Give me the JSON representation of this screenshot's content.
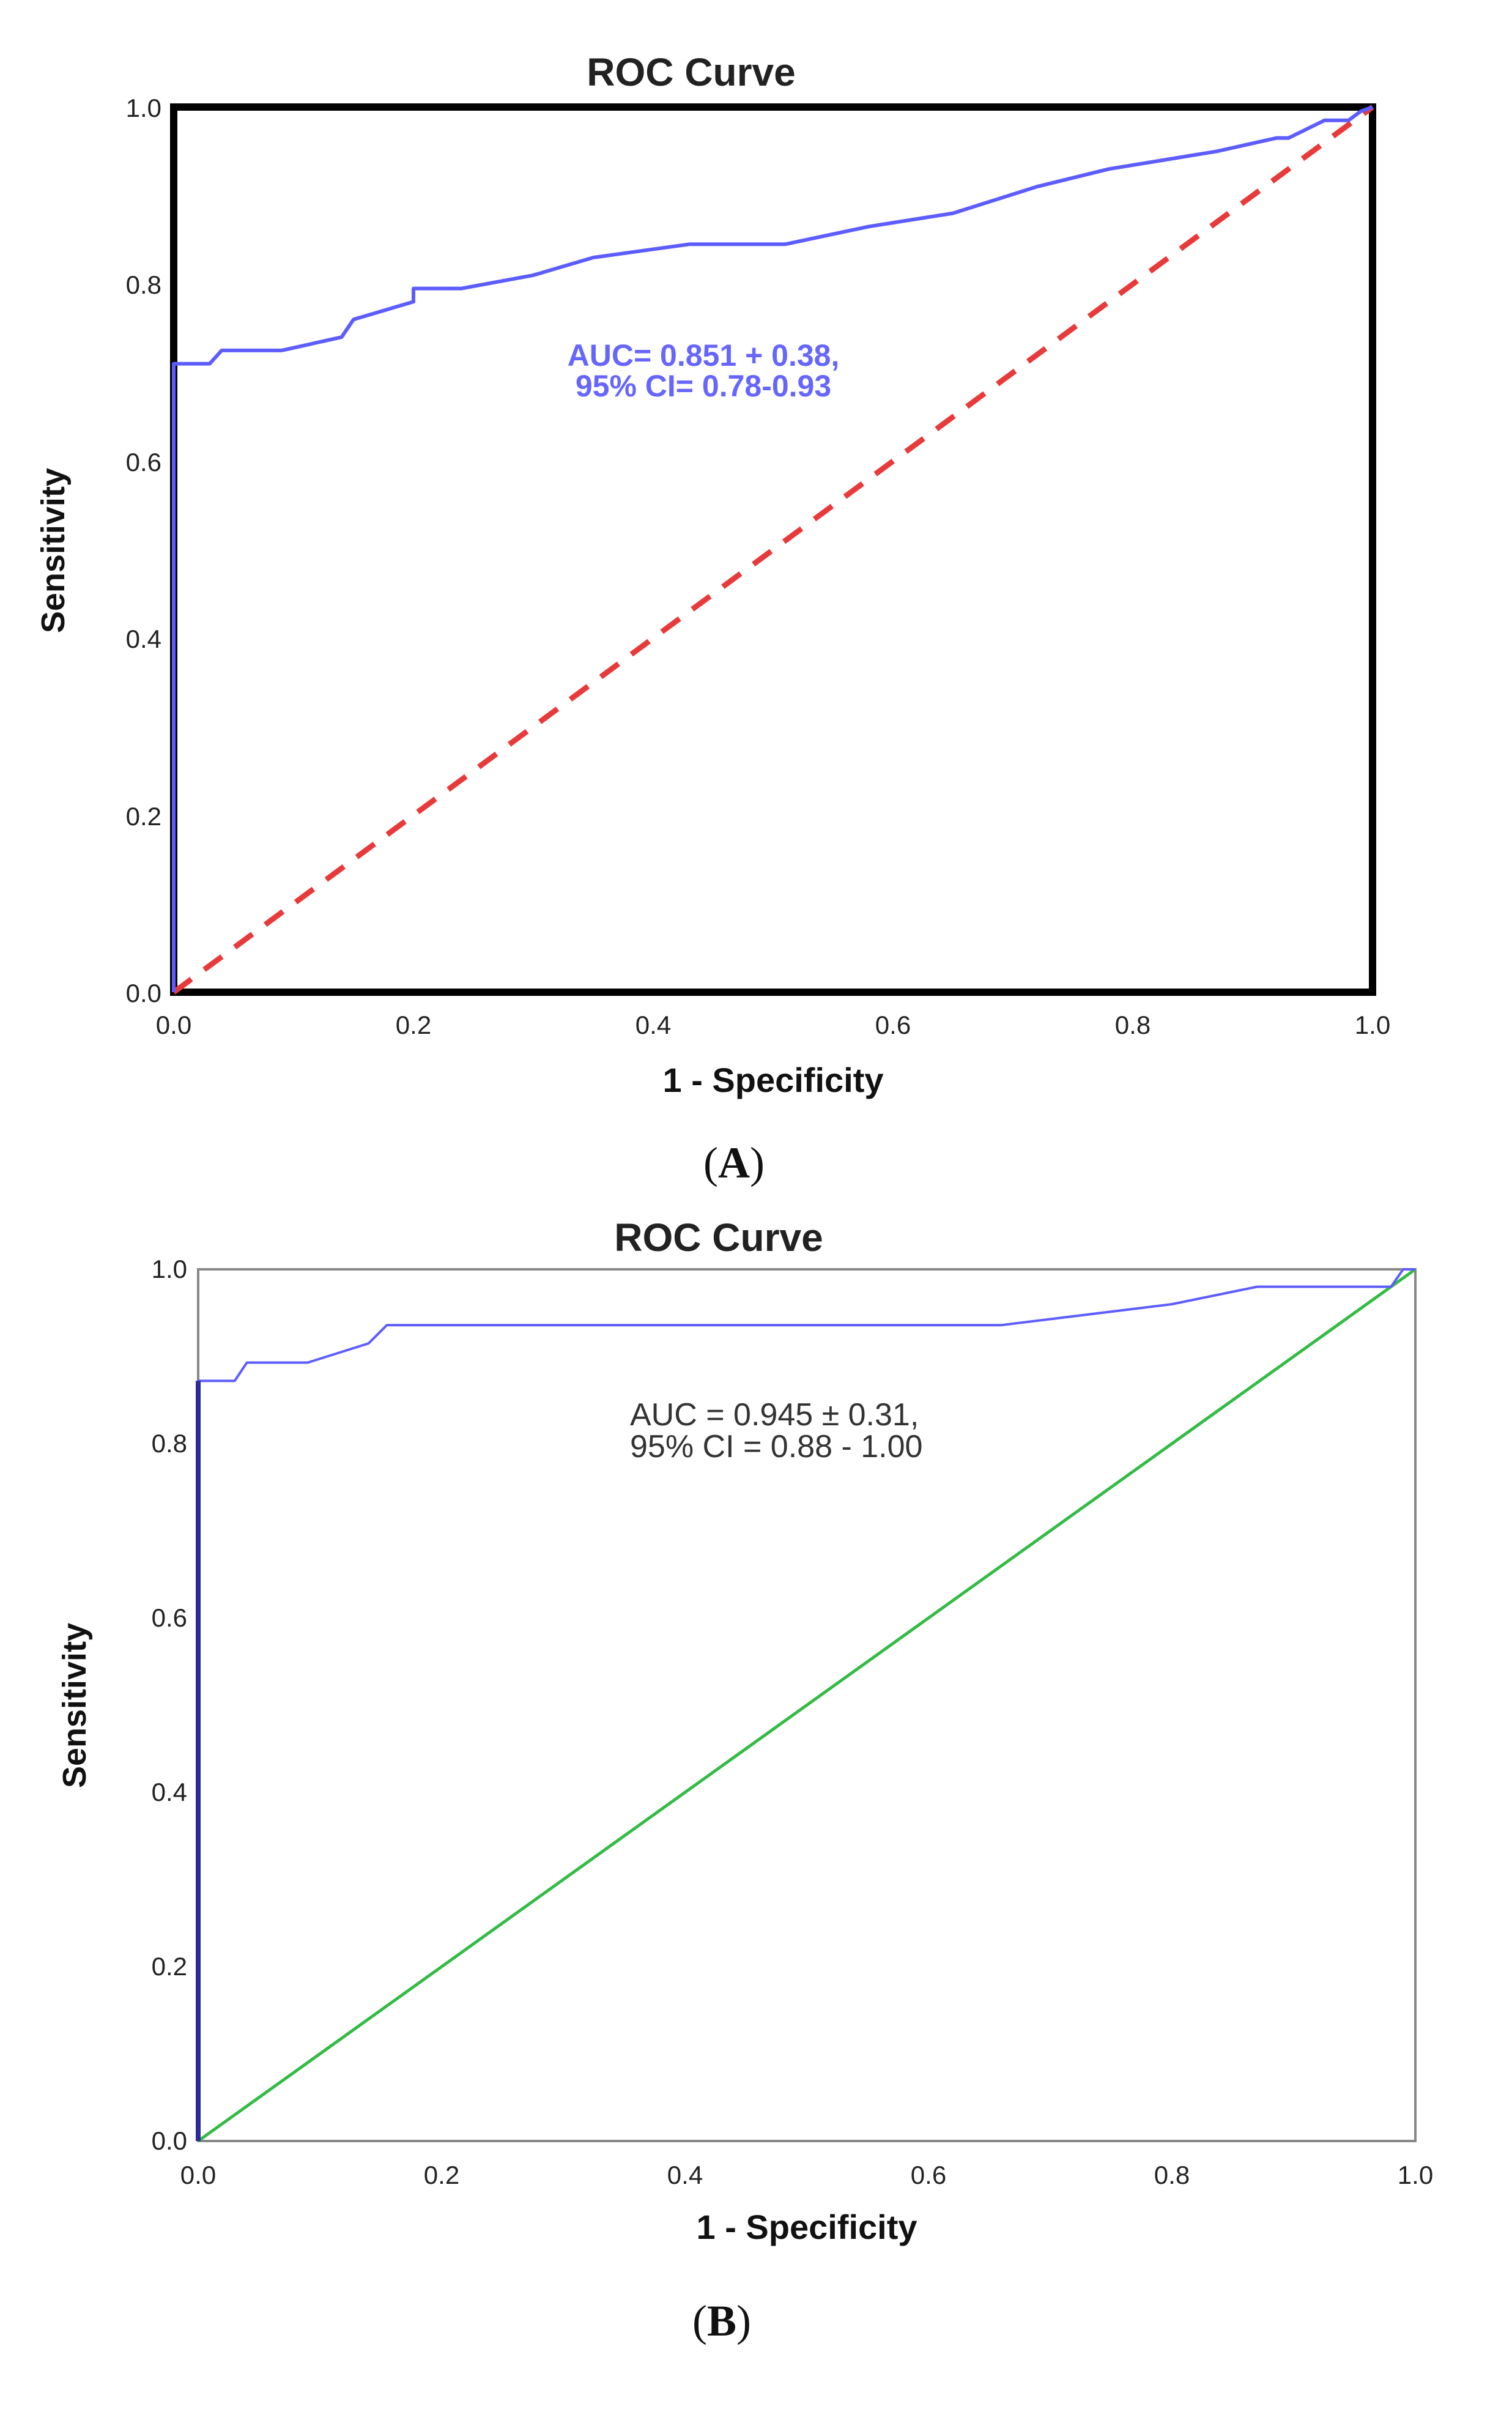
{
  "chart_data": [
    {
      "type": "line",
      "panel": "A",
      "title": "ROC Curve",
      "xlabel": "1 - Specificity",
      "ylabel": "Sensitivity",
      "xlim": [
        0,
        1
      ],
      "ylim": [
        0,
        1
      ],
      "xticks": [
        "0.0",
        "0.2",
        "0.4",
        "0.6",
        "0.8",
        "1.0"
      ],
      "yticks": [
        "0.0",
        "0.2",
        "0.4",
        "0.6",
        "0.8",
        "1.0"
      ],
      "annotation": [
        "AUC= 0.851 + 0.38,",
        "95% CI= 0.78-0.93"
      ],
      "series": [
        {
          "name": "ROC",
          "color": "#5d5dff",
          "x": [
            0,
            0,
            0.03,
            0.04,
            0.09,
            0.14,
            0.15,
            0.2,
            0.2,
            0.24,
            0.3,
            0.35,
            0.43,
            0.51,
            0.58,
            0.65,
            0.72,
            0.78,
            0.87,
            0.92,
            0.93,
            0.96,
            0.98,
            0.99,
            1.0
          ],
          "y": [
            0,
            0.71,
            0.71,
            0.725,
            0.725,
            0.74,
            0.76,
            0.78,
            0.795,
            0.795,
            0.81,
            0.83,
            0.845,
            0.845,
            0.865,
            0.88,
            0.91,
            0.93,
            0.95,
            0.965,
            0.965,
            0.985,
            0.985,
            0.995,
            1.0
          ]
        },
        {
          "name": "Reference line",
          "color": "#e83a3a",
          "style": "dashed",
          "x": [
            0,
            1
          ],
          "y": [
            0,
            1
          ]
        }
      ],
      "frame_color": "#000000"
    },
    {
      "type": "line",
      "panel": "B",
      "title": "ROC Curve",
      "xlabel": "1 - Specificity",
      "ylabel": "Sensitivity",
      "xlim": [
        0,
        1
      ],
      "ylim": [
        0,
        1
      ],
      "xticks": [
        "0.0",
        "0.2",
        "0.4",
        "0.6",
        "0.8",
        "1.0"
      ],
      "yticks": [
        "0.0",
        "0.2",
        "0.4",
        "0.6",
        "0.8",
        "1.0"
      ],
      "annotation": [
        "AUC = 0.945 ± 0.31,",
        "95% CI = 0.88 - 1.00"
      ],
      "series": [
        {
          "name": "ROC",
          "color": "#5d5dff",
          "x": [
            0,
            0,
            0.03,
            0.04,
            0.09,
            0.14,
            0.155,
            0.3,
            0.5,
            0.66,
            0.8,
            0.87,
            0.98,
            0.99,
            1.0
          ],
          "y": [
            0,
            0.872,
            0.872,
            0.893,
            0.893,
            0.915,
            0.936,
            0.936,
            0.936,
            0.936,
            0.96,
            0.98,
            0.98,
            1.0,
            1.0
          ]
        },
        {
          "name": "Reference line",
          "color": "#33bb44",
          "style": "solid",
          "x": [
            0,
            1
          ],
          "y": [
            0,
            1
          ]
        }
      ],
      "frame_color": "#888888"
    }
  ]
}
